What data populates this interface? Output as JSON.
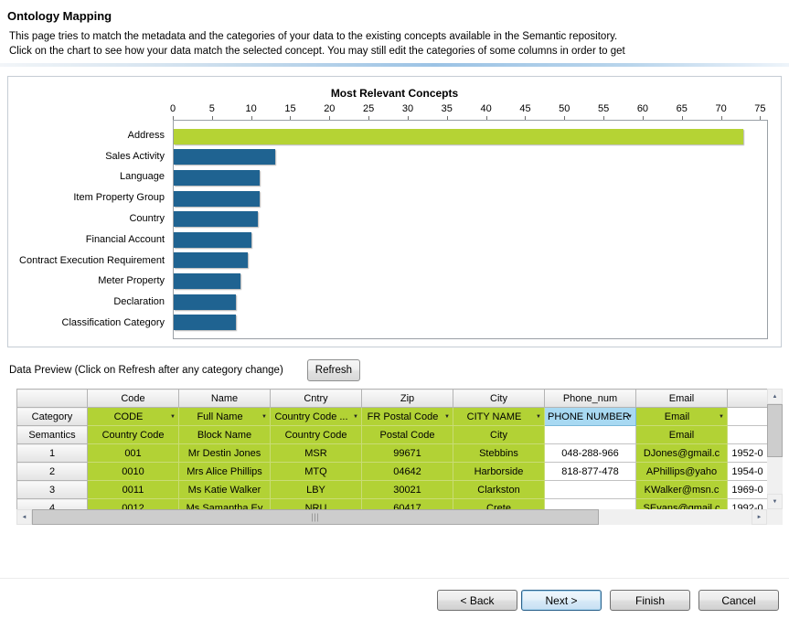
{
  "header": {
    "title": "Ontology Mapping",
    "description": [
      "This page tries to match the metadata and the categories of your data to the existing concepts available in the Semantic repository.",
      "Click on the chart to see how your data match the selected concept. You may still edit the categories of some columns in order to get"
    ]
  },
  "chart_data": {
    "type": "bar",
    "orientation": "horizontal",
    "title": "Most Relevant Concepts",
    "categories": [
      "Address",
      "Sales Activity",
      "Language",
      "Item Property Group",
      "Country",
      "Financial Account",
      "Contract Execution Requirement",
      "Meter Property",
      "Declaration",
      "Classification Category"
    ],
    "values": [
      73,
      13,
      11,
      11,
      10.8,
      10,
      9.5,
      8.5,
      8,
      8
    ],
    "highlight_index": 0,
    "colors": {
      "highlight": "#b5d334",
      "bar": "#1f6391"
    },
    "xlim": [
      0,
      76
    ],
    "ticks": [
      0,
      5,
      10,
      15,
      20,
      25,
      30,
      35,
      40,
      45,
      50,
      55,
      60,
      65,
      70,
      75
    ],
    "grid": false,
    "legend": "none"
  },
  "preview": {
    "label": "Data Preview (Click on Refresh after any category change)",
    "refresh_button": "Refresh",
    "table": {
      "corner_label": "",
      "column_headers": [
        "Code",
        "Name",
        "Cntry",
        "Zip",
        "City",
        "Phone_num",
        "Email",
        ""
      ],
      "rows": [
        {
          "label": "Category",
          "cells": [
            {
              "t": "CODE",
              "bg": "g",
              "dd": true
            },
            {
              "t": "Full Name",
              "bg": "g",
              "dd": true
            },
            {
              "t": "Country Code ...",
              "bg": "g",
              "dd": true
            },
            {
              "t": "FR Postal Code",
              "bg": "g",
              "dd": true
            },
            {
              "t": "CITY NAME",
              "bg": "g",
              "dd": true
            },
            {
              "t": "PHONE NUMBER",
              "bg": "b",
              "dd": true
            },
            {
              "t": "Email",
              "bg": "g",
              "dd": true
            },
            {
              "t": "",
              "bg": "w"
            }
          ]
        },
        {
          "label": "Semantics",
          "cells": [
            {
              "t": "Country Code",
              "bg": "g"
            },
            {
              "t": "Block Name",
              "bg": "g"
            },
            {
              "t": "Country Code",
              "bg": "g"
            },
            {
              "t": "Postal Code",
              "bg": "g"
            },
            {
              "t": "City",
              "bg": "g"
            },
            {
              "t": "",
              "bg": "w"
            },
            {
              "t": "Email",
              "bg": "g"
            },
            {
              "t": "",
              "bg": "w"
            }
          ]
        },
        {
          "label": "1",
          "cells": [
            {
              "t": "001",
              "bg": "g"
            },
            {
              "t": "Mr Destin Jones",
              "bg": "g"
            },
            {
              "t": "MSR",
              "bg": "g"
            },
            {
              "t": "99671",
              "bg": "g"
            },
            {
              "t": "Stebbins",
              "bg": "g"
            },
            {
              "t": "048-288-966",
              "bg": "w"
            },
            {
              "t": "DJones@gmail.c",
              "bg": "g"
            },
            {
              "t": "1952-0",
              "bg": "w"
            }
          ]
        },
        {
          "label": "2",
          "cells": [
            {
              "t": "0010",
              "bg": "g"
            },
            {
              "t": "Mrs Alice Phillips",
              "bg": "g"
            },
            {
              "t": "MTQ",
              "bg": "g"
            },
            {
              "t": "04642",
              "bg": "g"
            },
            {
              "t": "Harborside",
              "bg": "g"
            },
            {
              "t": "818-877-478",
              "bg": "w"
            },
            {
              "t": "APhillips@yaho",
              "bg": "g"
            },
            {
              "t": "1954-0",
              "bg": "w"
            }
          ]
        },
        {
          "label": "3",
          "cells": [
            {
              "t": "0011",
              "bg": "g"
            },
            {
              "t": "Ms Katie Walker",
              "bg": "g"
            },
            {
              "t": "LBY",
              "bg": "g"
            },
            {
              "t": "30021",
              "bg": "g"
            },
            {
              "t": "Clarkston",
              "bg": "g"
            },
            {
              "t": "",
              "bg": "w"
            },
            {
              "t": "KWalker@msn.c",
              "bg": "g"
            },
            {
              "t": "1969-0",
              "bg": "w"
            }
          ]
        },
        {
          "label": "4",
          "cells": [
            {
              "t": "0012",
              "bg": "g"
            },
            {
              "t": "Ms Samantha Ev",
              "bg": "g"
            },
            {
              "t": "NRU",
              "bg": "g"
            },
            {
              "t": "60417",
              "bg": "g"
            },
            {
              "t": "Crete",
              "bg": "g"
            },
            {
              "t": "",
              "bg": "w"
            },
            {
              "t": "SEvans@gmail.c",
              "bg": "g"
            },
            {
              "t": "1992-0",
              "bg": "w"
            }
          ]
        }
      ]
    }
  },
  "icons": {
    "scroll_up": "▲",
    "scroll_down": "▼",
    "scroll_left": "◄",
    "scroll_right": "►",
    "dropdown_arrow": "▼"
  },
  "footer": {
    "back_button": "< Back",
    "next_button": "Next >",
    "finish_button": "Finish",
    "cancel_button": "Cancel"
  }
}
